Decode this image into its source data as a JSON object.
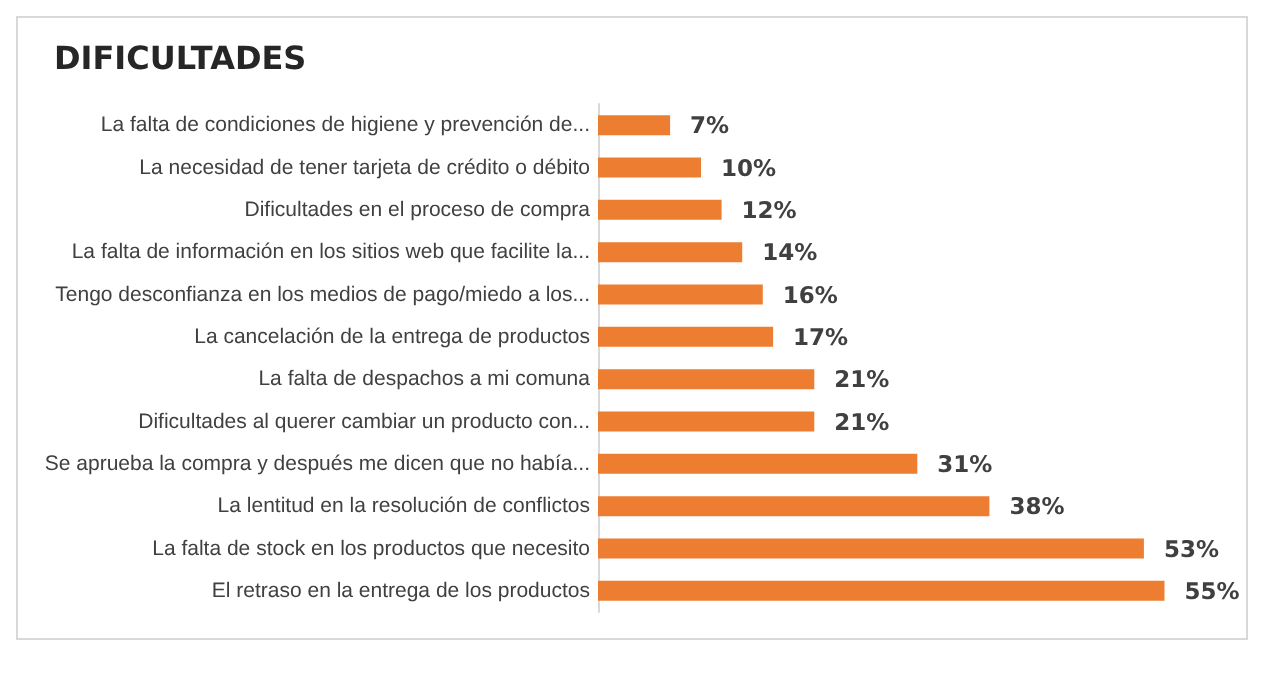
{
  "chart_data": {
    "type": "bar",
    "orientation": "horizontal",
    "title": "DIFICULTADES",
    "categories": [
      "La falta de condiciones de higiene y prevención de...",
      "La necesidad de tener tarjeta de crédito o débito",
      "Dificultades en el proceso de compra",
      "La falta de información en los sitios web que facilite la...",
      "Tengo desconfianza en los medios de pago/miedo a los...",
      "La cancelación de la entrega de productos",
      "La falta de despachos a mi comuna",
      "Dificultades al querer cambiar un producto con...",
      "Se aprueba la compra y después me dicen que no había...",
      "La lentitud en la resolución de conflictos",
      "La falta de stock en los productos que necesito",
      "El retraso en la entrega de los productos"
    ],
    "values": [
      7,
      10,
      12,
      14,
      16,
      17,
      21,
      21,
      31,
      38,
      53,
      55
    ],
    "value_labels": [
      "7%",
      "10%",
      "12%",
      "14%",
      "16%",
      "17%",
      "21%",
      "21%",
      "31%",
      "38%",
      "53%",
      "55%"
    ],
    "color": "#ed7d31"
  }
}
